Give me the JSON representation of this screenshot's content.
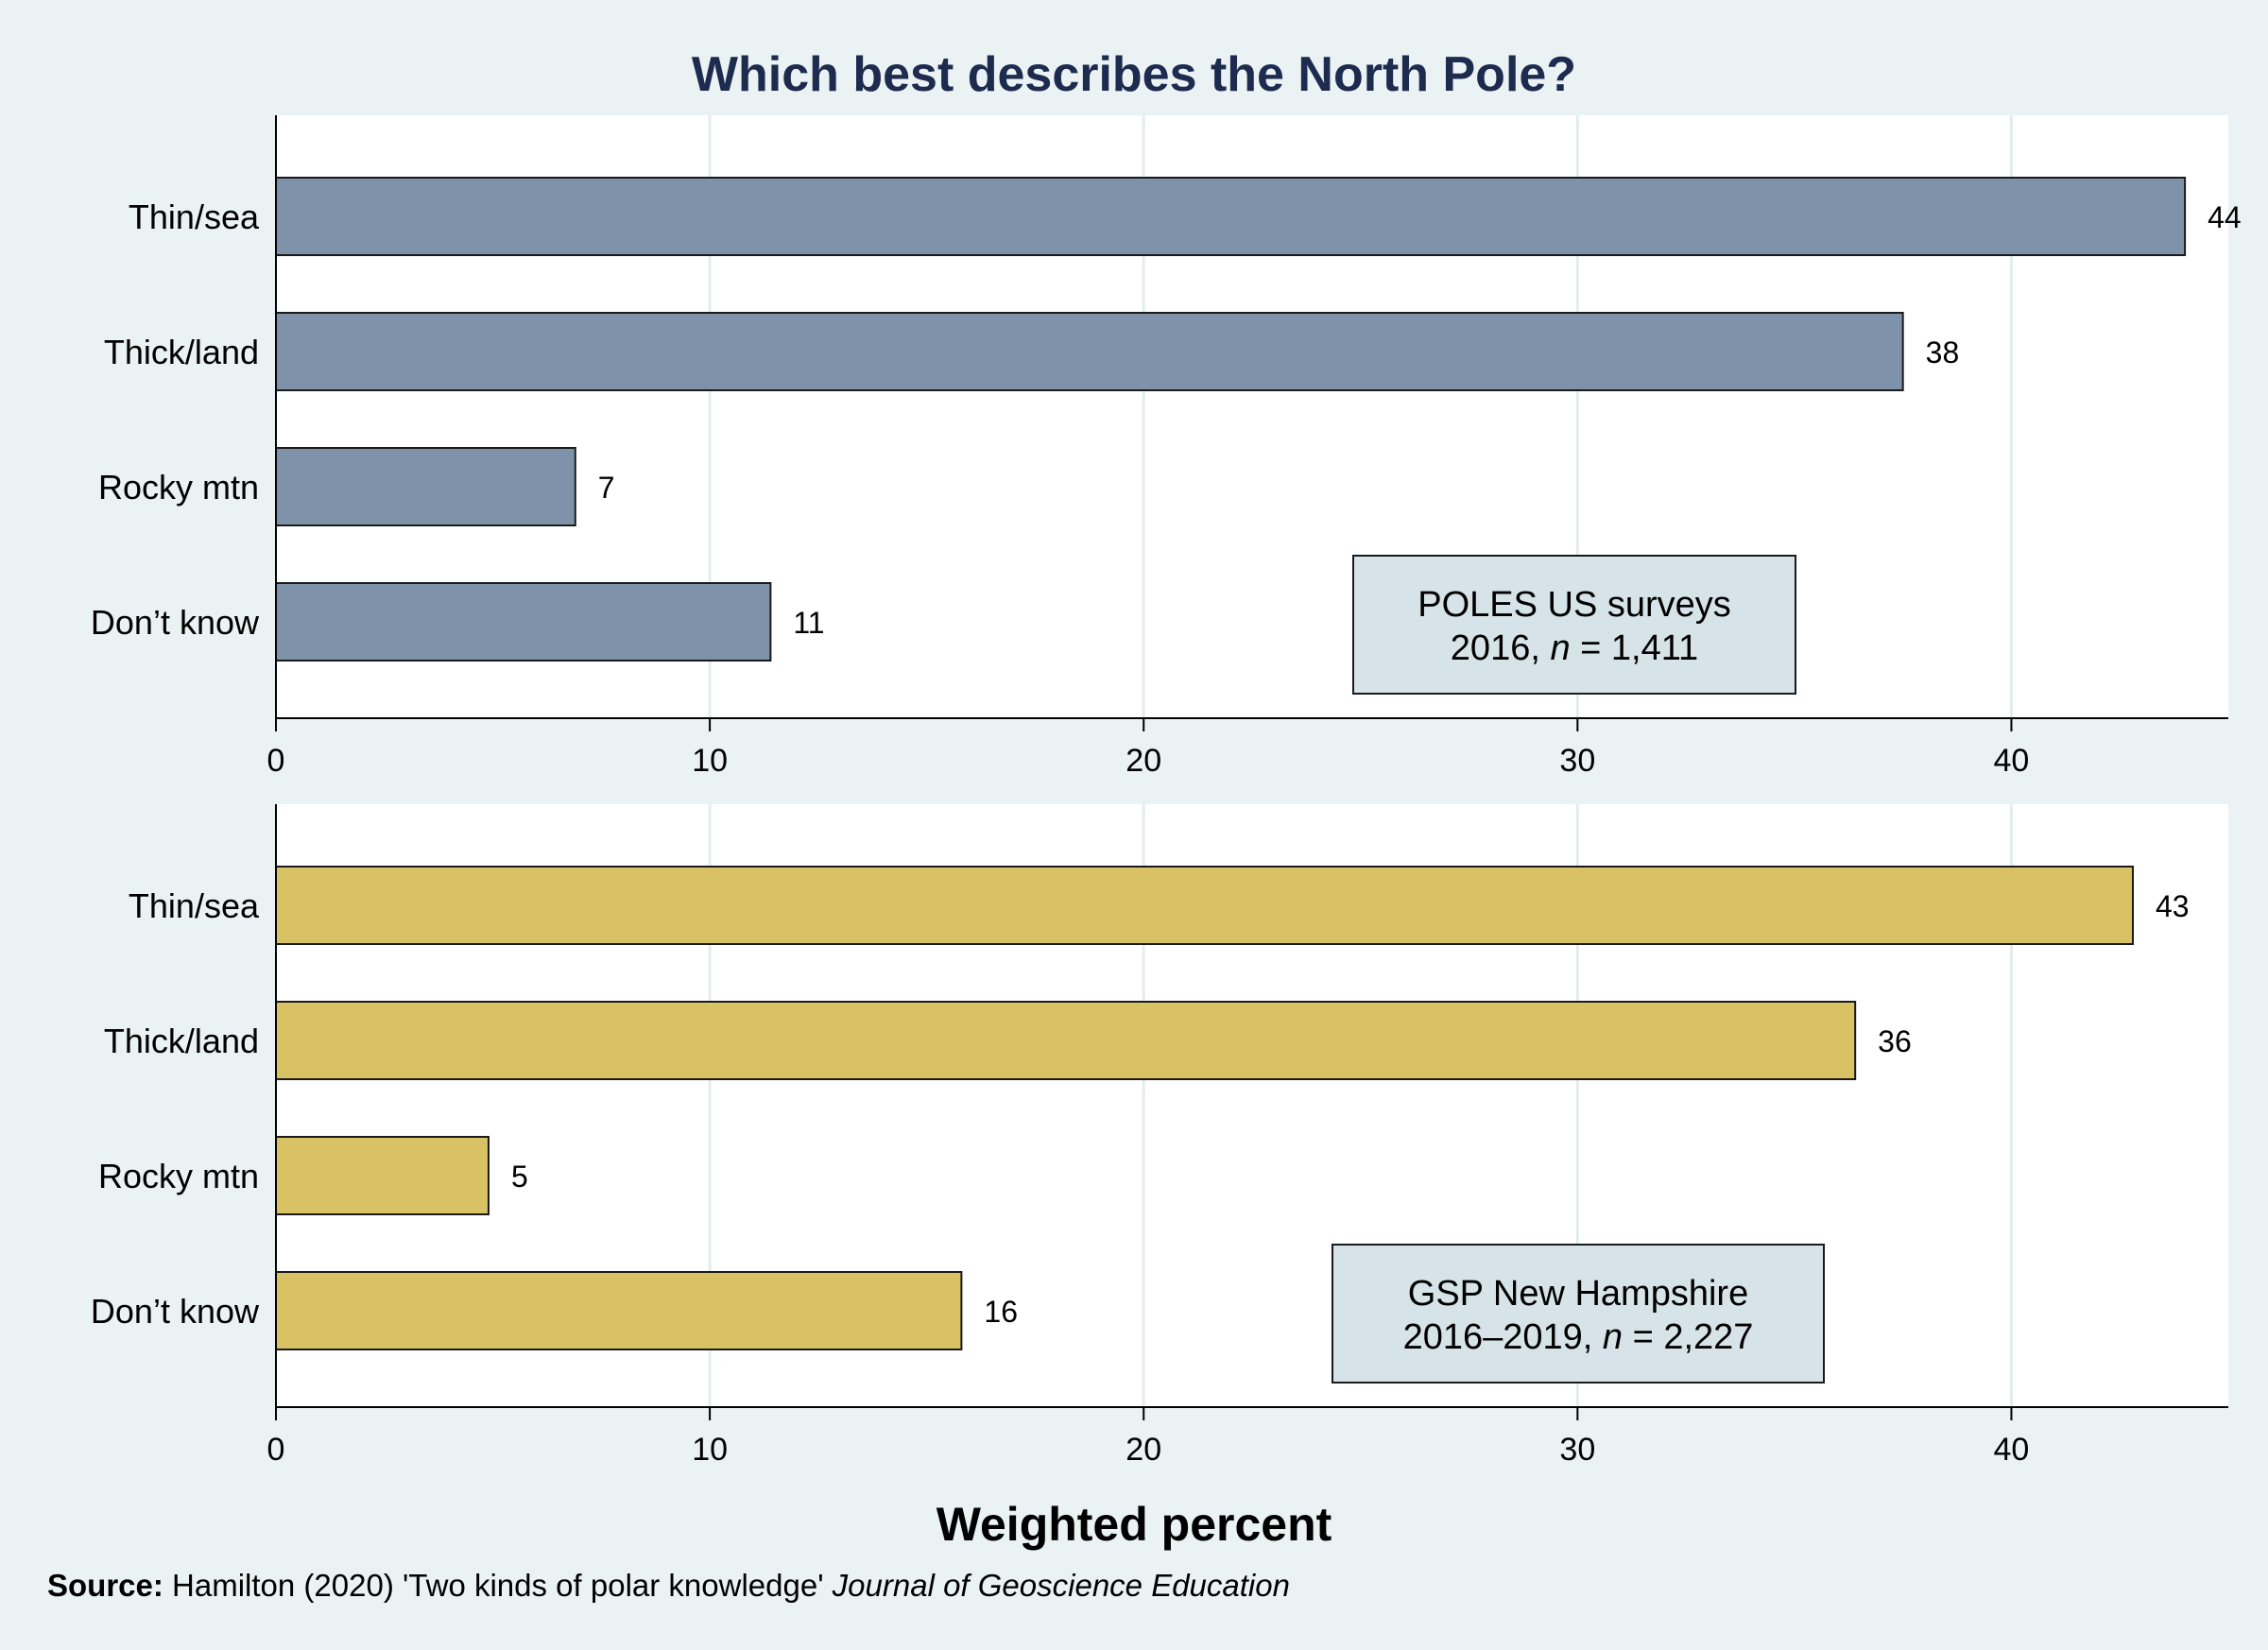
{
  "title": "Which best describes the North Pole?",
  "xlabel": "Weighted percent",
  "source": {
    "label": "Source:",
    "text": " Hamilton (2020) 'Two kinds of polar knowledge' ",
    "journal": "Journal of Geoscience Education"
  },
  "colors": {
    "background": "#eaf2f3",
    "plot_background": "#ffffff",
    "grid": "#e3eeec",
    "bar_top": "#7e93aa",
    "bar_bottom": "#d8c263",
    "bar_edge": "#1a1a1a",
    "annotation_box": "#d6e3e8",
    "title_text": "#1d2b4f"
  },
  "chart_data": [
    {
      "type": "bar",
      "orientation": "horizontal",
      "categories": [
        "Thin/sea",
        "Thick/land",
        "Rocky mtn",
        "Don’t know"
      ],
      "values": [
        44.0,
        37.5,
        6.9,
        11.4
      ],
      "data_labels": [
        "44",
        "38",
        "7",
        "11"
      ],
      "xlim": [
        0,
        45
      ],
      "xticks": [
        0,
        10,
        20,
        30,
        40
      ],
      "grid": true,
      "annotation": {
        "line1": "POLES US surveys",
        "line2_prefix": "2016, ",
        "line2_italic": "n",
        "line2_suffix": " = 1,411"
      }
    },
    {
      "type": "bar",
      "orientation": "horizontal",
      "categories": [
        "Thin/sea",
        "Thick/land",
        "Rocky mtn",
        "Don’t know"
      ],
      "values": [
        42.8,
        36.4,
        4.9,
        15.8
      ],
      "data_labels": [
        "43",
        "36",
        "5",
        "16"
      ],
      "xlim": [
        0,
        45
      ],
      "xticks": [
        0,
        10,
        20,
        30,
        40
      ],
      "grid": true,
      "annotation": {
        "line1": "GSP New Hampshire",
        "line2_prefix": "2016–2019, ",
        "line2_italic": "n",
        "line2_suffix": " = 2,227"
      }
    }
  ]
}
